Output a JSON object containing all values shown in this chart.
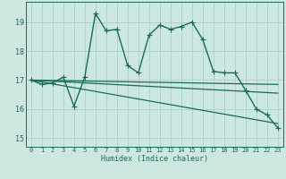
{
  "xlabel": "Humidex (Indice chaleur)",
  "xlim": [
    -0.5,
    23.5
  ],
  "ylim": [
    14.7,
    19.7
  ],
  "yticks": [
    15,
    16,
    17,
    18,
    19
  ],
  "xticks": [
    0,
    1,
    2,
    3,
    4,
    5,
    6,
    7,
    8,
    9,
    10,
    11,
    12,
    13,
    14,
    15,
    16,
    17,
    18,
    19,
    20,
    21,
    22,
    23
  ],
  "bg_color": "#cce8e0",
  "grid_color": "#aaced0",
  "line_color": "#1a6b5a",
  "series": [
    [
      0,
      17.0
    ],
    [
      1,
      16.85
    ],
    [
      2,
      16.9
    ],
    [
      3,
      17.1
    ],
    [
      4,
      16.1
    ],
    [
      5,
      17.1
    ],
    [
      6,
      19.3
    ],
    [
      7,
      18.7
    ],
    [
      8,
      18.75
    ],
    [
      9,
      17.5
    ],
    [
      10,
      17.25
    ],
    [
      11,
      18.55
    ],
    [
      12,
      18.9
    ],
    [
      13,
      18.75
    ],
    [
      14,
      18.85
    ],
    [
      15,
      19.0
    ],
    [
      16,
      18.4
    ],
    [
      17,
      17.3
    ],
    [
      18,
      17.25
    ],
    [
      19,
      17.25
    ],
    [
      20,
      16.65
    ],
    [
      21,
      16.0
    ],
    [
      22,
      15.8
    ],
    [
      23,
      15.35
    ]
  ],
  "trend_lines": [
    {
      "x0": 0,
      "y0": 17.0,
      "x1": 23,
      "y1": 16.85
    },
    {
      "x0": 0,
      "y0": 17.0,
      "x1": 23,
      "y1": 16.55
    },
    {
      "x0": 0,
      "y0": 17.0,
      "x1": 23,
      "y1": 15.5
    }
  ],
  "marker_size": 2.5,
  "line_width": 1.0
}
